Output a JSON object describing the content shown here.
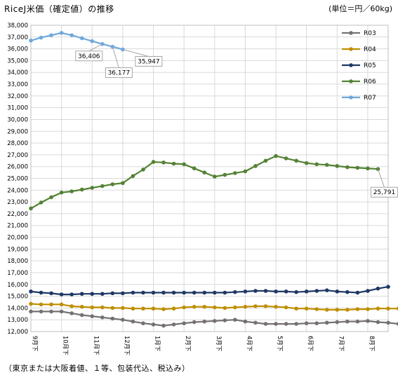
{
  "title": "RiceJ米価（確定値）の推移",
  "unit_label": "(単位＝円／60kg)",
  "footnote": "（東京または大阪着値、１等、包装代込、税込み）",
  "chart_data": {
    "type": "line",
    "ylim": [
      12000,
      38000
    ],
    "y_ticks": [
      "12,000",
      "13,000",
      "14,000",
      "15,000",
      "16,000",
      "17,000",
      "18,000",
      "19,000",
      "20,000",
      "21,000",
      "22,000",
      "23,000",
      "24,000",
      "25,000",
      "26,000",
      "27,000",
      "28,000",
      "29,000",
      "30,000",
      "31,000",
      "32,000",
      "33,000",
      "34,000",
      "35,000",
      "36,000",
      "37,000",
      "38,000"
    ],
    "x_labels": [
      "9月下",
      "10月下",
      "11月下",
      "12月下",
      "1月下",
      "2月下",
      "3月下",
      "4月下",
      "5月下",
      "6月下",
      "7月下",
      "8月下"
    ],
    "points_per_label": 3,
    "grid": true,
    "legend_position": "top-right",
    "series": [
      {
        "name": "R03",
        "color": "#767171",
        "values": [
          13700,
          13700,
          13700,
          13700,
          13550,
          13400,
          13300,
          13200,
          13100,
          13000,
          12850,
          12700,
          12600,
          12500,
          12600,
          12700,
          12800,
          12850,
          12900,
          12950,
          13000,
          12850,
          12750,
          12650,
          12650,
          12650,
          12650,
          12700,
          12700,
          12750,
          12800,
          12850,
          12850,
          12900,
          12800,
          12750,
          12650
        ]
      },
      {
        "name": "R04",
        "color": "#bf8f00",
        "values": [
          14350,
          14300,
          14300,
          14300,
          14150,
          14100,
          14050,
          14050,
          14000,
          14000,
          13950,
          13950,
          13950,
          13900,
          13950,
          14050,
          14100,
          14100,
          14050,
          14000,
          14050,
          14100,
          14150,
          14150,
          14100,
          14050,
          13950,
          13950,
          13900,
          13850,
          13850,
          13850,
          13900,
          13900,
          13950,
          13950,
          13950
        ]
      },
      {
        "name": "R05",
        "color": "#1f3864",
        "values": [
          15400,
          15300,
          15250,
          15150,
          15150,
          15200,
          15200,
          15200,
          15250,
          15250,
          15300,
          15300,
          15300,
          15300,
          15300,
          15300,
          15300,
          15300,
          15300,
          15300,
          15350,
          15400,
          15450,
          15450,
          15400,
          15400,
          15350,
          15400,
          15450,
          15500,
          15400,
          15350,
          15300,
          15450,
          15650,
          15800
        ]
      },
      {
        "name": "R06",
        "color": "#548235",
        "values": [
          22450,
          22950,
          23400,
          23800,
          23900,
          24050,
          24200,
          24350,
          24500,
          24600,
          25200,
          25750,
          26400,
          26350,
          26250,
          26200,
          25850,
          25500,
          25150,
          25300,
          25450,
          25600,
          26050,
          26500,
          26900,
          26700,
          26500,
          26300,
          26200,
          26150,
          26050,
          25950,
          25900,
          25850,
          25791
        ]
      },
      {
        "name": "R07",
        "color": "#6fa8dc",
        "values": [
          36700,
          36950,
          37150,
          37350,
          37150,
          36900,
          36650,
          36406,
          36177,
          35947
        ]
      }
    ],
    "callouts": [
      {
        "text": "36,406",
        "series": "R07",
        "index": 7
      },
      {
        "text": "36,177",
        "series": "R07",
        "index": 8
      },
      {
        "text": "35,947",
        "series": "R07",
        "index": 9
      },
      {
        "text": "25,791",
        "series": "R06",
        "index": 34
      }
    ]
  }
}
